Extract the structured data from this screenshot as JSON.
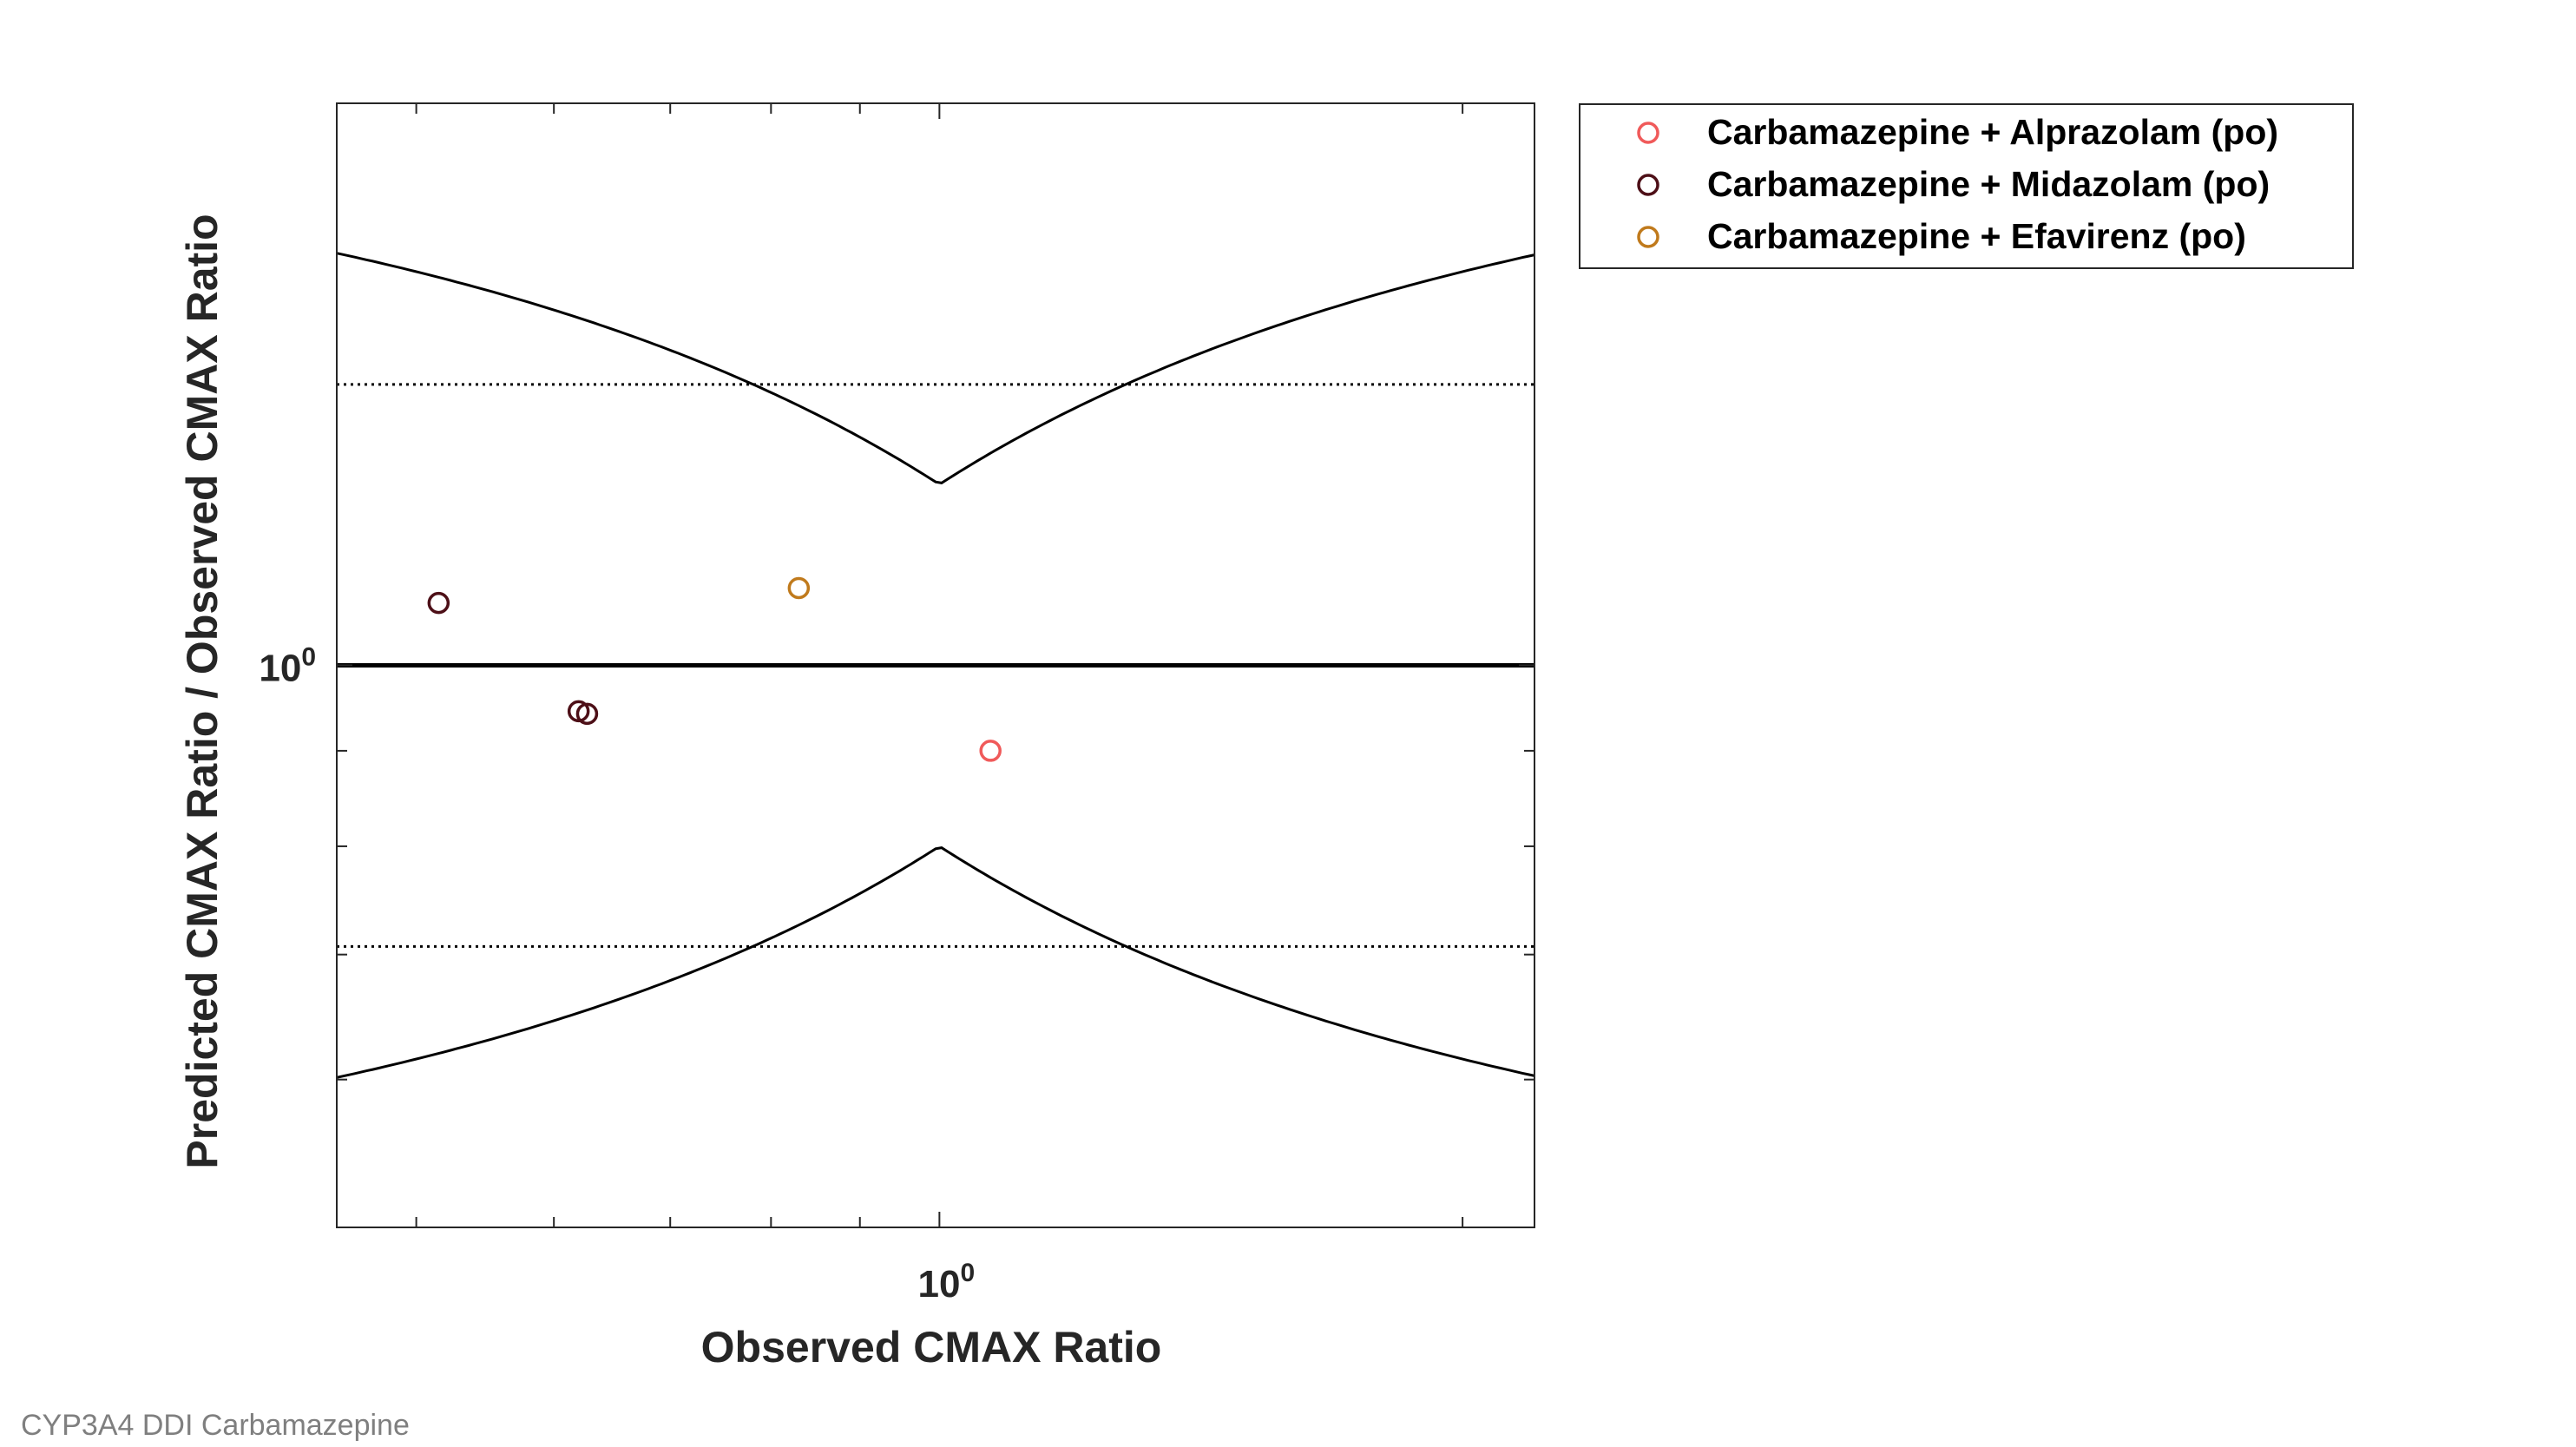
{
  "chart_data": {
    "type": "scatter",
    "xlabel": "Observed CMAX Ratio",
    "ylabel": "Predicted CMAX Ratio / Observed CMAX Ratio",
    "x_scale": "log",
    "y_scale": "log",
    "xlim": [
      0.45,
      2.2
    ],
    "ylim": [
      0.5,
      2.0
    ],
    "x_tick_label": "10",
    "x_tick_exponent": "0",
    "y_tick_label": "10",
    "y_tick_exponent": "0",
    "legend_position": "outside-top-right",
    "grid": false,
    "series": [
      {
        "name": "Carbamazepine + Alprazolam (po)",
        "color": "#f05a5a",
        "points": [
          {
            "x": 1.07,
            "y": 0.9
          }
        ]
      },
      {
        "name": "Carbamazepine + Midazolam (po)",
        "color": "#4d0f17",
        "points": [
          {
            "x": 0.515,
            "y": 1.08
          },
          {
            "x": 0.62,
            "y": 0.945
          },
          {
            "x": 0.627,
            "y": 0.942
          }
        ]
      },
      {
        "name": "Carbamazepine + Efavirenz (po)",
        "color": "#c07a1c",
        "points": [
          {
            "x": 0.83,
            "y": 1.1
          }
        ]
      }
    ],
    "reference_lines": {
      "identity_y": 1.0,
      "dotted_bounds": [
        0.707,
        1.414
      ],
      "guest_limit_delta": 1.25
    }
  },
  "footer": {
    "text": "CYP3A4 DDI Carbamazepine"
  }
}
